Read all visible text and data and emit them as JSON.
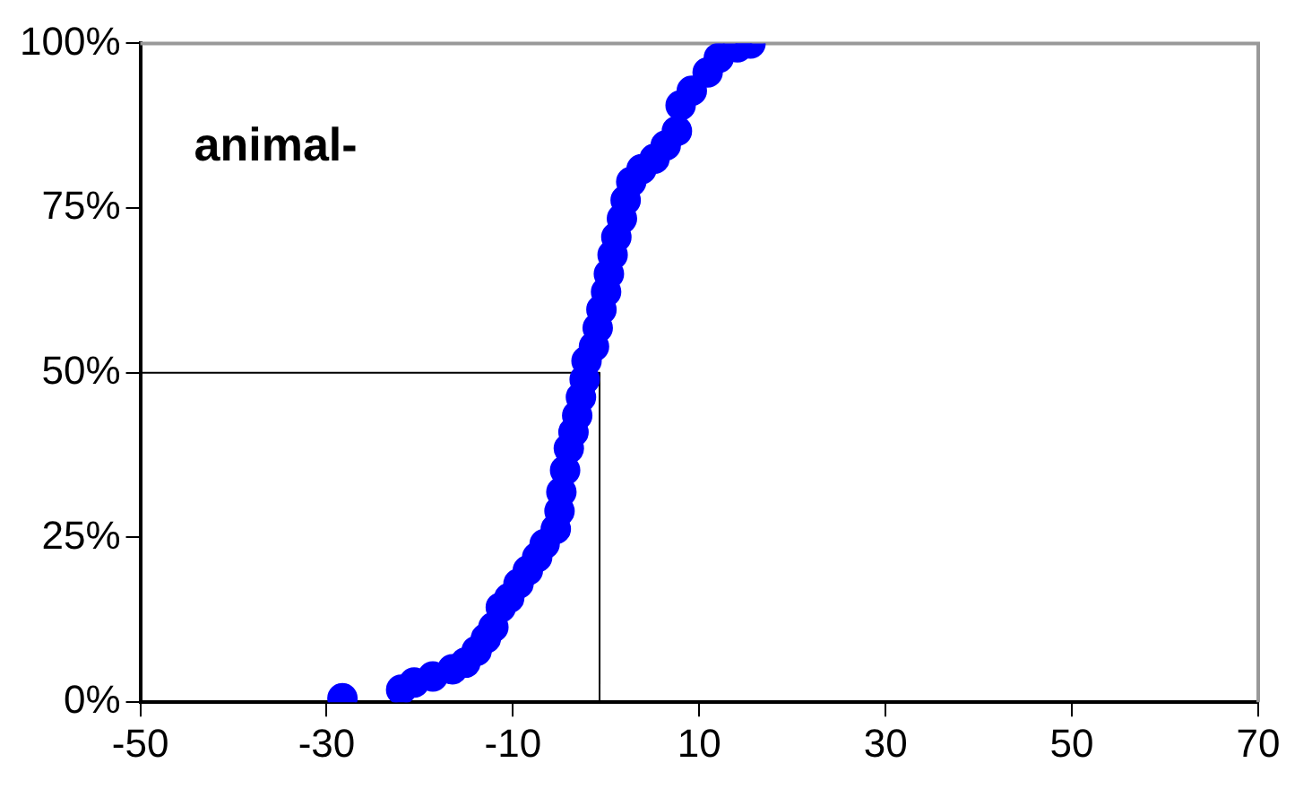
{
  "chart_data": {
    "type": "scatter",
    "annotations": [
      "animal-"
    ],
    "xlim": [
      -50,
      70
    ],
    "xticks": [
      -50,
      -30,
      -10,
      10,
      30,
      50,
      70
    ],
    "ylim": [
      0,
      100
    ],
    "yticks": [
      {
        "value": 0,
        "label": "0%"
      },
      {
        "value": 25,
        "label": "25%"
      },
      {
        "value": 50,
        "label": "50%"
      },
      {
        "value": 75,
        "label": "75%"
      },
      {
        "value": 100,
        "label": "100%"
      }
    ],
    "grid": false,
    "legend": false,
    "marker": "circle",
    "series": [
      {
        "type": "line",
        "color": "#000000",
        "marker": "none",
        "x": [
          -50,
          -0.7,
          -0.7
        ],
        "values": [
          50,
          50,
          0
        ]
      },
      {
        "color": "#0000ff",
        "x": [
          -28.3,
          -22,
          -20.6,
          -18.6,
          -16.5,
          -15.1,
          -13.9,
          -12.9,
          -12.1,
          -11.3,
          -10.4,
          -9.4,
          -8.4,
          -7.4,
          -6.6,
          -5.4,
          -5,
          -4.8,
          -4.4,
          -4,
          -3.5,
          -3.1,
          -2.7,
          -2.3,
          -2.1,
          -1.3,
          -0.9,
          -0.5,
          0,
          0.3,
          0.7,
          1.1,
          1.7,
          2.1,
          2.7,
          3.8,
          5.2,
          6.4,
          7.6,
          8,
          9.2,
          10.9,
          12.1,
          14.1,
          15.5
        ],
        "values": [
          0.6,
          1.9,
          3,
          3.9,
          5,
          6,
          7.8,
          9.7,
          11.4,
          14.4,
          15.8,
          18,
          20,
          22,
          24,
          26.3,
          29,
          31.9,
          35.2,
          38.5,
          41,
          43.5,
          46.3,
          49,
          51.8,
          54,
          56.8,
          59.6,
          62.3,
          65,
          67.9,
          70.6,
          73.4,
          76.2,
          79,
          80.9,
          82.5,
          84.5,
          86.7,
          90.6,
          92.8,
          95.6,
          97.8,
          99.4,
          100
        ]
      }
    ]
  }
}
